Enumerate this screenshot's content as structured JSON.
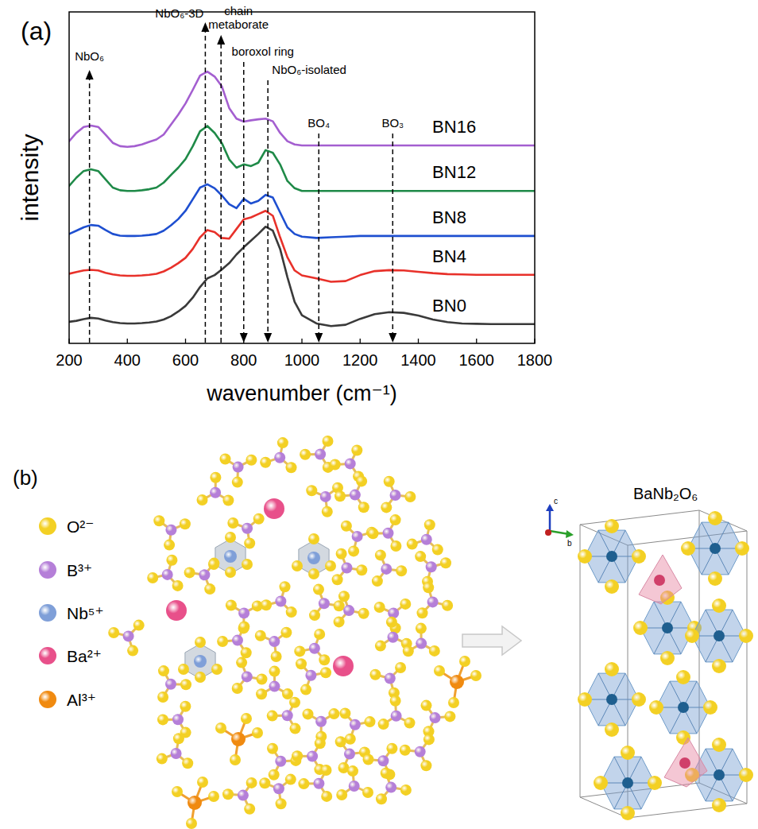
{
  "chart_data": {
    "type": "line",
    "panel": "(a)",
    "x_label": "wavenumber (cm⁻¹)",
    "y_label": "intensity",
    "x": [
      200,
      225,
      250,
      275,
      300,
      325,
      350,
      375,
      400,
      425,
      450,
      475,
      500,
      525,
      550,
      575,
      600,
      625,
      650,
      675,
      700,
      725,
      750,
      775,
      800,
      825,
      850,
      875,
      900,
      925,
      950,
      975,
      1000,
      1050,
      1100,
      1150,
      1200,
      1250,
      1300,
      1350,
      1400,
      1450,
      1500,
      1550,
      1600,
      1650,
      1700,
      1750,
      1800
    ],
    "xlim": [
      200,
      1800
    ],
    "xticks": [
      200,
      400,
      600,
      800,
      1000,
      1200,
      1400,
      1600,
      1800
    ],
    "ylim": [
      0,
      100
    ],
    "tick_labels": "x",
    "series": [
      {
        "name": "BN0",
        "color": "#3a3a3a",
        "values": [
          6.5,
          6.8,
          7.3,
          7.7,
          7.5,
          6.9,
          6.4,
          6.1,
          6.0,
          6.0,
          6.1,
          6.3,
          6.6,
          7.2,
          8.2,
          9.6,
          11.3,
          13.8,
          17.0,
          19.6,
          20.6,
          22.3,
          24.2,
          26.8,
          29.0,
          31.0,
          33.0,
          35.2,
          34.0,
          28.5,
          20.0,
          12.5,
          8.5,
          6.0,
          5.2,
          5.6,
          7.4,
          8.8,
          9.4,
          9.2,
          8.4,
          7.2,
          6.4,
          6.0,
          5.9,
          5.8,
          5.8,
          5.8,
          5.8
        ]
      },
      {
        "name": "BN4",
        "color": "#e8312a",
        "values": [
          21.0,
          21.5,
          22.0,
          22.2,
          22.0,
          21.3,
          20.8,
          20.5,
          20.4,
          20.4,
          20.5,
          20.7,
          21.0,
          21.7,
          22.8,
          24.2,
          25.8,
          28.5,
          32.0,
          34.2,
          33.6,
          31.8,
          31.6,
          34.5,
          37.4,
          38.0,
          39.0,
          40.0,
          38.5,
          32.0,
          26.0,
          22.0,
          20.5,
          19.6,
          18.6,
          18.8,
          20.6,
          21.8,
          22.1,
          22.0,
          21.6,
          21.2,
          20.9,
          20.8,
          20.7,
          20.7,
          20.7,
          20.7,
          20.7
        ]
      },
      {
        "name": "BN8",
        "color": "#1e4fd0",
        "values": [
          33.0,
          34.0,
          35.0,
          35.7,
          35.5,
          34.2,
          33.0,
          32.5,
          32.4,
          32.4,
          32.5,
          32.7,
          33.0,
          34.0,
          35.6,
          37.5,
          40.0,
          43.5,
          47.0,
          48.0,
          46.8,
          44.6,
          42.0,
          40.8,
          43.6,
          42.2,
          43.0,
          44.8,
          44.0,
          39.5,
          35.0,
          33.0,
          32.2,
          31.8,
          32.0,
          32.2,
          32.4,
          32.4,
          32.4,
          32.4,
          32.4,
          32.4,
          32.4,
          32.4,
          32.4,
          32.4,
          32.4,
          32.4,
          32.4
        ]
      },
      {
        "name": "BN12",
        "color": "#1f8a48",
        "values": [
          47.5,
          50.0,
          52.0,
          52.5,
          52.0,
          49.5,
          47.0,
          46.2,
          46.0,
          46.0,
          46.2,
          46.5,
          47.0,
          48.5,
          50.8,
          53.0,
          55.6,
          59.5,
          64.0,
          65.6,
          63.5,
          60.4,
          55.5,
          53.0,
          54.0,
          53.5,
          54.5,
          58.3,
          57.5,
          54.0,
          49.0,
          46.8,
          46.0,
          46.0,
          46.0,
          46.0,
          46.0,
          46.0,
          46.0,
          46.0,
          46.0,
          46.0,
          46.0,
          46.0,
          46.0,
          46.0,
          46.0,
          46.0,
          46.0
        ]
      },
      {
        "name": "BN16",
        "color": "#a45fd0",
        "values": [
          61.0,
          63.5,
          65.3,
          65.7,
          65.3,
          63.0,
          60.5,
          59.5,
          59.3,
          59.5,
          60.0,
          60.8,
          61.5,
          63.0,
          66.0,
          69.0,
          72.4,
          76.5,
          80.8,
          82.0,
          80.5,
          77.5,
          71.0,
          67.8,
          66.9,
          67.3,
          67.6,
          67.8,
          67.0,
          63.5,
          61.0,
          60.0,
          59.7,
          59.7,
          59.7,
          59.7,
          59.7,
          59.7,
          59.7,
          59.7,
          59.7,
          59.7,
          59.7,
          59.7,
          59.7,
          59.7,
          59.7,
          59.7,
          59.7
        ]
      }
    ],
    "annotations": [
      {
        "x": 270,
        "label": "NbO₆"
      },
      {
        "x": 668,
        "label": "NbO₆-3D"
      },
      {
        "x": 722,
        "label": "chain metaborate"
      },
      {
        "x": 800,
        "label": "boroxol ring"
      },
      {
        "x": 883,
        "label": "NbO₆-isolated"
      },
      {
        "x": 1058,
        "label": "BO₄"
      },
      {
        "x": 1312,
        "label": "BO₃"
      }
    ]
  },
  "diagram": {
    "panel": "(b)",
    "legend": [
      {
        "label": "O²⁻",
        "color": "#f3d024"
      },
      {
        "label": "B³⁺",
        "color": "#b57fd8"
      },
      {
        "label": "Nb⁵⁺",
        "color": "#7f9fd8"
      },
      {
        "label": "Ba²⁺",
        "color": "#e8508a"
      },
      {
        "label": "Al³⁺",
        "color": "#f08a10"
      }
    ],
    "structure_title": "BaNb₂O₆",
    "crystal_axes": [
      "c",
      "b"
    ]
  }
}
